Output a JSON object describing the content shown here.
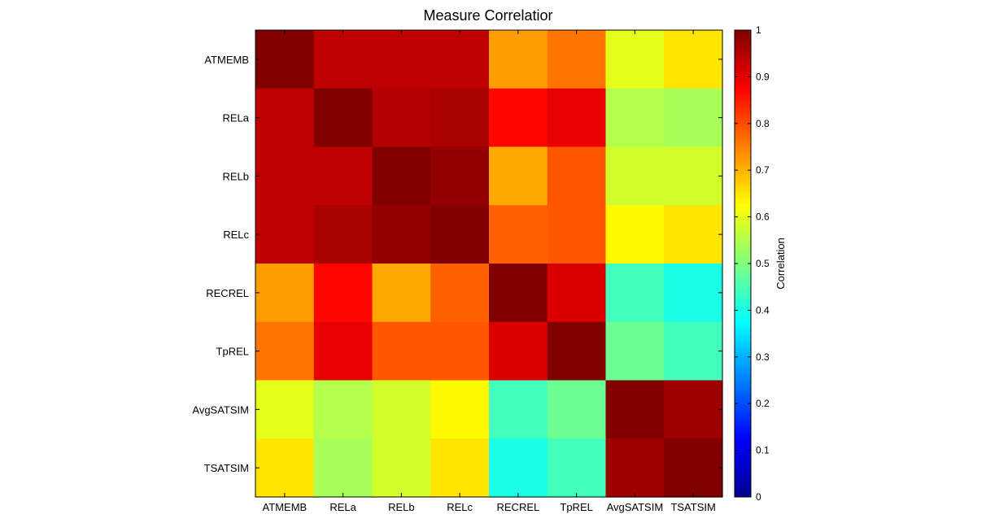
{
  "chart_data": {
    "type": "heatmap",
    "title": "Measure Correlatior",
    "xlabel": "",
    "ylabel": "",
    "x_categories": [
      "ATMEMB",
      "RELa",
      "RELb",
      "RELc",
      "RECREL",
      "TpREL",
      "AvgSATSIM",
      "TSATSIM"
    ],
    "y_categories": [
      "ATMEMB",
      "RELa",
      "RELb",
      "RELc",
      "RECREL",
      "TpREL",
      "AvgSATSIM",
      "TSATSIM"
    ],
    "values": [
      [
        1.0,
        0.94,
        0.94,
        0.94,
        0.72,
        0.76,
        0.6,
        0.65
      ],
      [
        0.94,
        1.0,
        0.95,
        0.96,
        0.87,
        0.9,
        0.55,
        0.54
      ],
      [
        0.94,
        0.94,
        1.0,
        0.98,
        0.71,
        0.79,
        0.58,
        0.58
      ],
      [
        0.94,
        0.96,
        0.98,
        1.0,
        0.78,
        0.79,
        0.63,
        0.65
      ],
      [
        0.72,
        0.87,
        0.71,
        0.78,
        1.0,
        0.91,
        0.44,
        0.4
      ],
      [
        0.76,
        0.9,
        0.79,
        0.79,
        0.91,
        1.0,
        0.48,
        0.44
      ],
      [
        0.6,
        0.55,
        0.58,
        0.63,
        0.44,
        0.48,
        1.0,
        0.97
      ],
      [
        0.65,
        0.54,
        0.58,
        0.65,
        0.4,
        0.44,
        0.97,
        1.0
      ]
    ],
    "colormap": "jet",
    "colorbar": {
      "label": "Correlation",
      "range": [
        0,
        1
      ],
      "ticks": [
        0,
        0.1,
        0.2,
        0.3,
        0.4,
        0.5,
        0.6,
        0.7,
        0.8,
        0.9,
        1
      ]
    },
    "grid": false
  }
}
